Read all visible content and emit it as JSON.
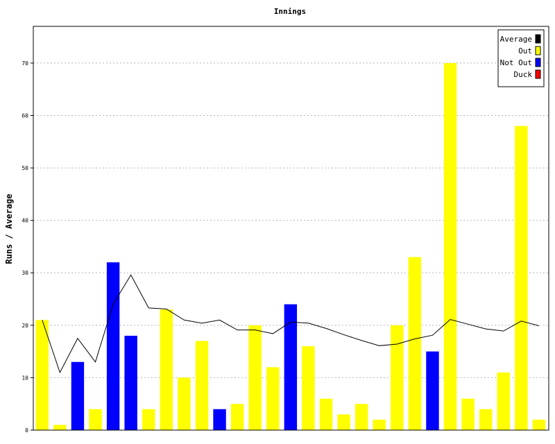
{
  "chart_data": {
    "type": "bar",
    "title": "Innings",
    "xlabel": "",
    "ylabel": "Runs / Average",
    "ylim": [
      0,
      77
    ],
    "yticks": [
      0,
      10,
      20,
      30,
      40,
      50,
      60,
      70
    ],
    "grid": true,
    "legend_position": "top-right",
    "colors": {
      "Average": "#000000",
      "Out": "#ffff00",
      "Not Out": "#0000ff",
      "Duck": "#ff0000"
    },
    "legend": [
      "Average",
      "Out",
      "Not Out",
      "Duck"
    ],
    "innings": [
      {
        "runs": 21,
        "status": "Out"
      },
      {
        "runs": 1,
        "status": "Out"
      },
      {
        "runs": 13,
        "status": "Not Out"
      },
      {
        "runs": 4,
        "status": "Out"
      },
      {
        "runs": 32,
        "status": "Not Out"
      },
      {
        "runs": 18,
        "status": "Not Out"
      },
      {
        "runs": 4,
        "status": "Out"
      },
      {
        "runs": 23,
        "status": "Out"
      },
      {
        "runs": 10,
        "status": "Out"
      },
      {
        "runs": 17,
        "status": "Out"
      },
      {
        "runs": 4,
        "status": "Not Out"
      },
      {
        "runs": 5,
        "status": "Out"
      },
      {
        "runs": 20,
        "status": "Out"
      },
      {
        "runs": 12,
        "status": "Out"
      },
      {
        "runs": 24,
        "status": "Not Out"
      },
      {
        "runs": 16,
        "status": "Out"
      },
      {
        "runs": 6,
        "status": "Out"
      },
      {
        "runs": 3,
        "status": "Out"
      },
      {
        "runs": 5,
        "status": "Out"
      },
      {
        "runs": 2,
        "status": "Out"
      },
      {
        "runs": 20,
        "status": "Out"
      },
      {
        "runs": 33,
        "status": "Out"
      },
      {
        "runs": 15,
        "status": "Not Out"
      },
      {
        "runs": 70,
        "status": "Out"
      },
      {
        "runs": 6,
        "status": "Out"
      },
      {
        "runs": 4,
        "status": "Out"
      },
      {
        "runs": 11,
        "status": "Out"
      },
      {
        "runs": 58,
        "status": "Out"
      },
      {
        "runs": 2,
        "status": "Out"
      }
    ],
    "average": [
      21.0,
      11.0,
      17.5,
      13.0,
      24.0,
      29.6,
      23.3,
      23.1,
      21.0,
      20.4,
      21.0,
      19.1,
      19.1,
      18.4,
      20.6,
      20.4,
      19.4,
      18.2,
      17.1,
      16.1,
      16.4,
      17.4,
      18.1,
      21.1,
      20.2,
      19.3,
      18.9,
      20.8,
      19.9
    ]
  }
}
